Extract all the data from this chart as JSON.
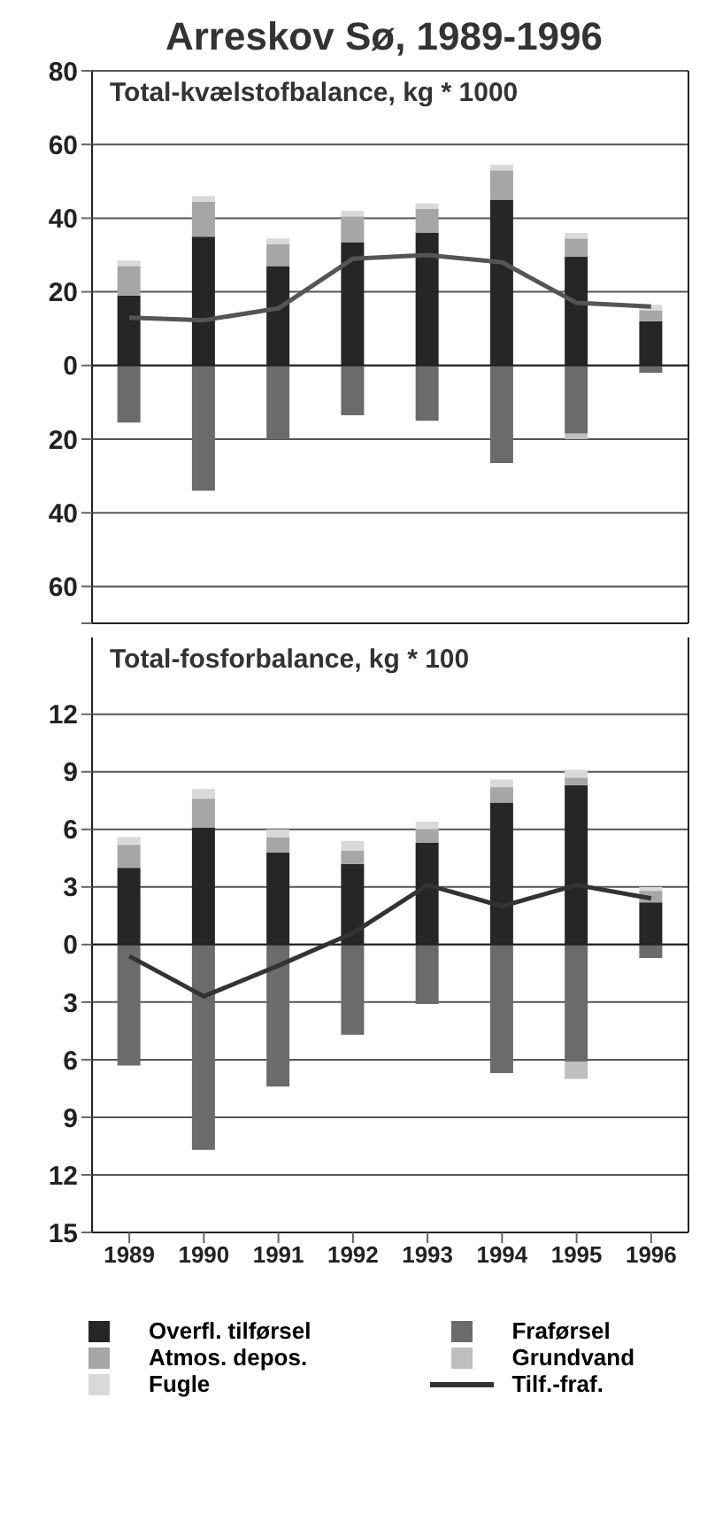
{
  "chart_data": [
    {
      "type": "bar",
      "title": "Arreskov Sø, 1989-1996",
      "subtitle": "Total-kvælstofbalance, kg * 1000",
      "categories": [
        "1989",
        "1990",
        "1991",
        "1992",
        "1993",
        "1994",
        "1995",
        "1996"
      ],
      "stacked": true,
      "grid": "y",
      "tick_labels": "y",
      "ylim": [
        -70,
        80
      ],
      "yticks": [
        {
          "value": -70,
          "label": null
        },
        {
          "value": -60,
          "label": "60"
        },
        {
          "value": -40,
          "label": "40"
        },
        {
          "value": -20,
          "label": "20"
        },
        0,
        20,
        40,
        60,
        80
      ],
      "series": [
        {
          "color": "#262626",
          "values": [
            19,
            35,
            27,
            33.5,
            36,
            45,
            29.5,
            12
          ]
        },
        {
          "color": "#a6a6a6",
          "values": [
            8,
            9.5,
            6,
            7,
            6.5,
            8,
            5,
            3
          ]
        },
        {
          "color": "#d9d9d9",
          "values": [
            1.5,
            1.5,
            1.5,
            1.5,
            1.5,
            1.5,
            1.5,
            1.5
          ]
        },
        {
          "color": "#6b6b6b",
          "values": [
            -15.5,
            -34,
            -20,
            -13.5,
            -15,
            -26.5,
            -18.5,
            -2
          ]
        },
        {
          "color": "#bfbfbf",
          "values": [
            0,
            0,
            0,
            0,
            0,
            0,
            -1.5,
            0
          ]
        },
        {
          "type": "line",
          "color": "#555555",
          "marker": "none",
          "values": [
            13,
            12.3,
            15.5,
            29,
            30,
            28,
            17,
            16
          ]
        }
      ]
    },
    {
      "type": "bar",
      "title": "Total-fosforbalance, kg * 100",
      "categories": [
        "1989",
        "1990",
        "1991",
        "1992",
        "1993",
        "1994",
        "1995",
        "1996"
      ],
      "stacked": true,
      "grid": "y",
      "legend": "bottom",
      "ylim": [
        -15,
        16
      ],
      "yticks": [
        {
          "value": -15,
          "label": "15"
        },
        {
          "value": -12,
          "label": "12"
        },
        {
          "value": -9,
          "label": "9"
        },
        {
          "value": -6,
          "label": "6"
        },
        {
          "value": -3,
          "label": "3"
        },
        0,
        3,
        6,
        9,
        12
      ],
      "series": [
        {
          "name": "Overfl. tilførsel",
          "color": "#262626",
          "values": [
            4,
            6.1,
            4.8,
            4.2,
            5.3,
            7.4,
            8.3,
            2.2
          ]
        },
        {
          "name": "Atmos. depos.",
          "color": "#a6a6a6",
          "values": [
            1.2,
            1.5,
            0.8,
            0.7,
            0.7,
            0.8,
            0.4,
            0.6
          ]
        },
        {
          "name": "Fugle",
          "color": "#d9d9d9",
          "values": [
            0.4,
            0.5,
            0.4,
            0.5,
            0.4,
            0.4,
            0.4,
            0.2
          ]
        },
        {
          "name": "Fraførsel",
          "color": "#6b6b6b",
          "values": [
            -6.3,
            -10.7,
            -7.4,
            -4.7,
            -3.1,
            -6.7,
            -6.1,
            -0.7
          ]
        },
        {
          "name": "Grundvand",
          "color": "#bfbfbf",
          "values": [
            0,
            0,
            0,
            0,
            0,
            0,
            -0.9,
            0
          ]
        },
        {
          "name": "Tilf.-fraf.",
          "type": "line",
          "color": "#333333",
          "marker": "none",
          "values": [
            -0.6,
            -2.7,
            -1.1,
            0.6,
            3.1,
            2.0,
            3.1,
            2.4
          ]
        }
      ]
    }
  ]
}
